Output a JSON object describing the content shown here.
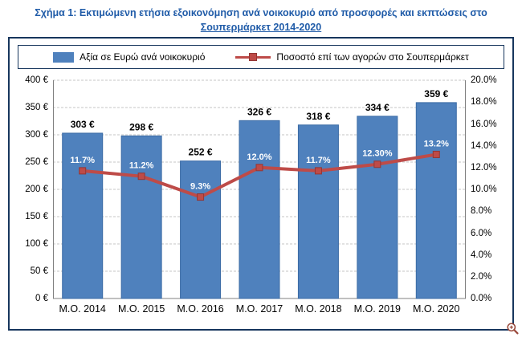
{
  "title": {
    "line1": "Σχήμα 1: Εκτιμώμενη ετήσια εξοικονόμηση ανά νοικοκυριό από προσφορές και εκπτώσεις στο",
    "line2": "Σουπερμάρκετ 2014-2020"
  },
  "legend": {
    "bar_label": "Αξία σε Ευρώ ανά νοικοκυριό",
    "line_label": "Ποσοστό επί των αγορών στο Σουπερμάρκετ"
  },
  "colors": {
    "title": "#1F5BA8",
    "frame": "#17365D",
    "bar": "#4F81BD",
    "bar_border": "#3B6BA5",
    "line": "#BE4B48",
    "marker_border": "#943634",
    "grid": "#C6C6C6",
    "axis": "#808080",
    "value_label": "#000000",
    "pct_label": "#FFFFFF"
  },
  "chart_data": {
    "type": "bar+line",
    "categories": [
      "Μ.Ο. 2014",
      "Μ.Ο. 2015",
      "Μ.Ο. 2016",
      "Μ.Ο. 2017",
      "Μ.Ο. 2018",
      "Μ.Ο. 2019",
      "Μ.Ο. 2020"
    ],
    "series": [
      {
        "name": "Αξία σε Ευρώ ανά νοικοκυριό",
        "type": "bar",
        "axis": "left",
        "color": "#4F81BD",
        "values": [
          303,
          298,
          252,
          326,
          318,
          334,
          359
        ],
        "labels": [
          "303 €",
          "298 €",
          "252 €",
          "326 €",
          "318 €",
          "334 €",
          "359 €"
        ]
      },
      {
        "name": "Ποσοστό επί των αγορών στο Σουπερμάρκετ",
        "type": "line",
        "axis": "right",
        "color": "#BE4B48",
        "values": [
          11.7,
          11.2,
          9.3,
          12.0,
          11.7,
          12.3,
          13.2
        ],
        "labels": [
          "11.7%",
          "11.2%",
          "9.3%",
          "12.0%",
          "11.7%",
          "12.30%",
          "13.2%"
        ]
      }
    ],
    "left_axis": {
      "min": 0,
      "max": 400,
      "step": 50,
      "ticks": [
        "400 €",
        "350 €",
        "300 €",
        "250 €",
        "200 €",
        "150 €",
        "100 €",
        "50 €",
        "0 €"
      ]
    },
    "right_axis": {
      "min": 0,
      "max": 20,
      "step": 2,
      "ticks": [
        "20.0%",
        "18.0%",
        "16.0%",
        "14.0%",
        "12.0%",
        "10.0%",
        "8.0%",
        "6.0%",
        "4.0%",
        "2.0%",
        "0.0%"
      ]
    },
    "grid": true,
    "legend_position": "top"
  },
  "icons": {
    "zoom": "magnifier-plus"
  }
}
